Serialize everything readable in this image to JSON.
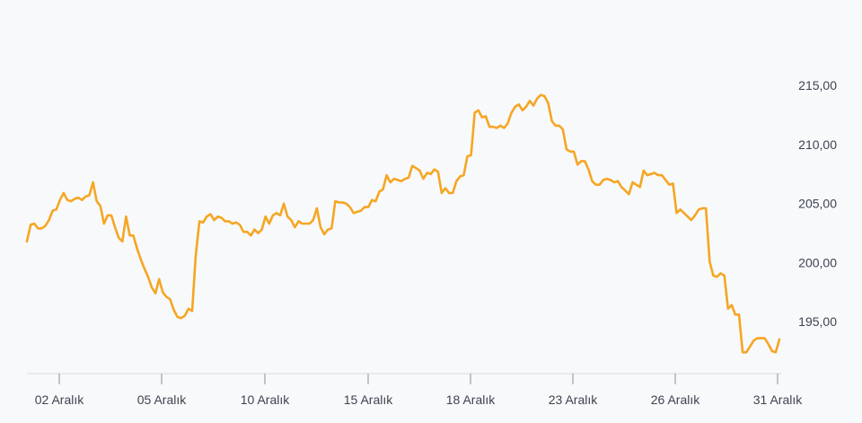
{
  "chart_data": {
    "type": "line",
    "title": "",
    "xlabel": "",
    "ylabel": "",
    "x_tick_labels": [
      "02 Aralık",
      "05 Aralık",
      "10 Aralık",
      "15 Aralık",
      "18 Aralık",
      "23 Aralık",
      "26 Aralık",
      "31 Aralık"
    ],
    "y_tick_labels": [
      "195,00",
      "200,00",
      "205,00",
      "210,00",
      "215,00"
    ],
    "y_ticks": [
      195,
      200,
      205,
      210,
      215
    ],
    "ylim": [
      190.6,
      219.2
    ],
    "grid": false,
    "legend": "none",
    "line_color": "#f5a623",
    "series": [
      {
        "values": [
          201.8,
          203.2,
          203.3,
          202.9,
          202.9,
          203.1,
          203.6,
          204.4,
          204.5,
          205.3,
          205.9,
          205.3,
          205.2,
          205.4,
          205.5,
          205.3,
          205.6,
          205.7,
          206.8,
          205.2,
          204.8,
          203.3,
          204.0,
          204.0,
          203.0,
          202.1,
          201.8,
          203.9,
          202.3,
          202.3,
          201.2,
          200.3,
          199.5,
          198.8,
          197.9,
          197.4,
          198.6,
          197.5,
          197.1,
          196.9,
          196.0,
          195.4,
          195.3,
          195.5,
          196.1,
          195.9,
          200.6,
          203.5,
          203.4,
          203.9,
          204.1,
          203.6,
          203.9,
          203.8,
          203.5,
          203.5,
          203.3,
          203.4,
          203.2,
          202.6,
          202.6,
          202.3,
          202.8,
          202.5,
          202.8,
          203.9,
          203.3,
          204.0,
          204.2,
          204.0,
          205.0,
          203.9,
          203.6,
          203.0,
          203.5,
          203.3,
          203.3,
          203.3,
          203.6,
          204.6,
          203.0,
          202.4,
          202.8,
          202.9,
          205.2,
          205.1,
          205.1,
          205.0,
          204.7,
          204.2,
          204.3,
          204.4,
          204.7,
          204.7,
          205.3,
          205.2,
          206.0,
          206.2,
          207.4,
          206.8,
          207.1,
          207.0,
          206.9,
          207.1,
          207.2,
          208.2,
          208.0,
          207.8,
          207.1,
          207.6,
          207.5,
          207.9,
          207.7,
          205.9,
          206.3,
          205.9,
          205.9,
          206.9,
          207.3,
          207.4,
          209.0,
          209.1,
          212.7,
          212.9,
          212.3,
          212.4,
          211.5,
          211.5,
          211.4,
          211.6,
          211.4,
          211.8,
          212.7,
          213.2,
          213.4,
          212.9,
          213.2,
          213.7,
          213.3,
          213.9,
          214.2,
          214.1,
          213.5,
          212.0,
          211.6,
          211.6,
          211.3,
          209.6,
          209.4,
          209.4,
          208.3,
          208.6,
          208.6,
          207.9,
          206.9,
          206.6,
          206.6,
          207.0,
          207.1,
          207.0,
          206.8,
          206.9,
          206.4,
          206.1,
          205.8,
          206.8,
          206.6,
          206.4,
          207.8,
          207.4,
          207.5,
          207.6,
          207.4,
          207.4,
          207.0,
          206.6,
          206.7,
          204.2,
          204.5,
          204.2,
          203.9,
          203.6,
          204.0,
          204.5,
          204.6,
          204.6,
          200.1,
          198.9,
          198.8,
          199.1,
          198.9,
          196.1,
          196.4,
          195.6,
          195.6,
          192.4,
          192.4,
          192.9,
          193.4,
          193.6,
          193.6,
          193.6,
          193.1,
          192.5,
          192.4,
          193.5
        ]
      }
    ]
  }
}
